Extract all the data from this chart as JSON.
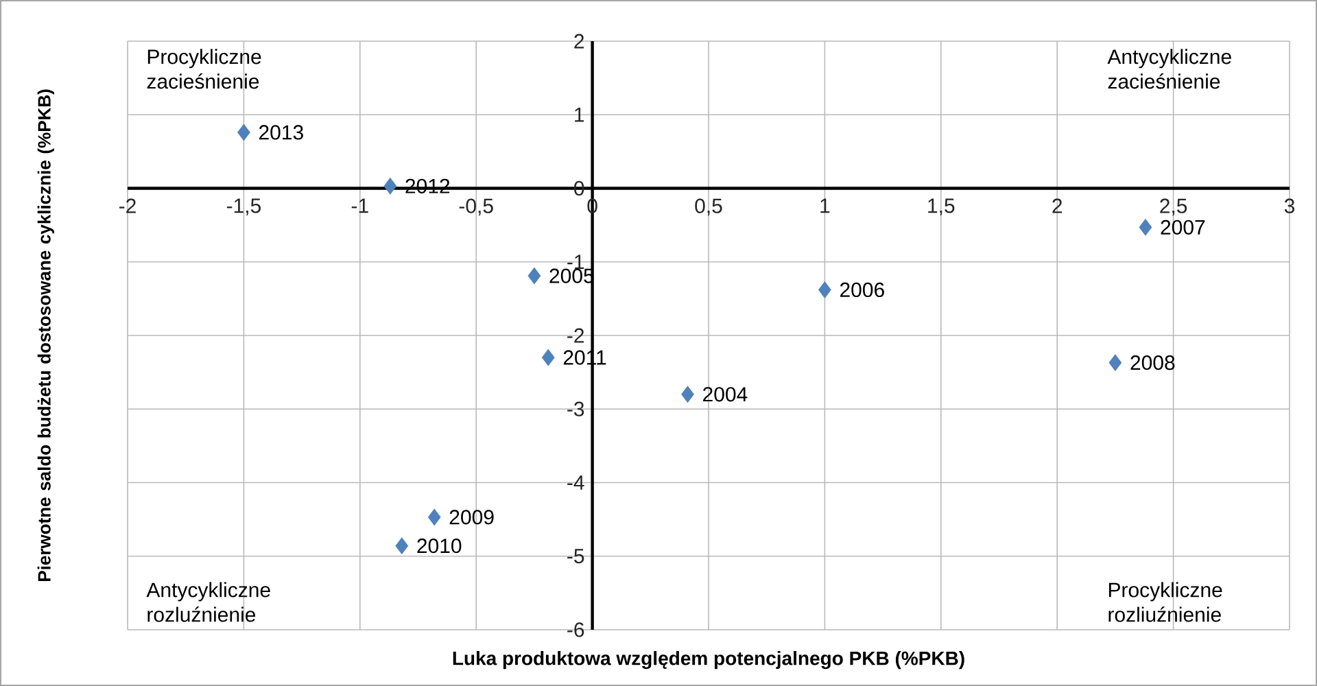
{
  "chart_data": {
    "type": "scatter",
    "xlabel": "Luka produktowa względem potencjalnego PKB (%PKB)",
    "ylabel": "Pierwotne saldo budżetu dostosowane cyklicznie (%PKB)",
    "x": [
      -1.5,
      -0.87,
      -0.25,
      -0.19,
      0.41,
      1.0,
      2.38,
      2.25,
      -0.68,
      -0.82
    ],
    "values": [
      0.76,
      0.03,
      -1.19,
      -2.3,
      -2.8,
      -1.38,
      -0.53,
      -2.37,
      -4.47,
      -4.86
    ],
    "color": "#4f81bd",
    "marker": "diamond",
    "grid": true,
    "xlim": [
      -2,
      3
    ],
    "xticks": [
      -2,
      {
        "value": -1.5,
        "label": "-1,5"
      },
      -1,
      {
        "value": -0.5,
        "label": "-0,5"
      },
      0,
      {
        "value": 0.5,
        "label": "0,5"
      },
      1,
      {
        "value": 1.5,
        "label": "1,5"
      },
      2,
      {
        "value": 2.5,
        "label": "2,5"
      },
      3
    ],
    "ylim": [
      -6,
      2
    ],
    "yticks": [
      -6,
      -5,
      -4,
      -3,
      -2,
      -1,
      0,
      1,
      2
    ],
    "annotations": [
      "Procykliczne zacieśnienie",
      "Antycykliczne zacieśnienie",
      "Antycykliczne rozluźnienie",
      "Procykliczne rozliuźnienie",
      {
        "text": "2013",
        "x": -1.5,
        "y": 0.76
      },
      {
        "text": "2012",
        "x": -0.87,
        "y": 0.03
      },
      {
        "text": "2005",
        "x": -0.25,
        "y": -1.19
      },
      {
        "text": "2011",
        "x": -0.19,
        "y": -2.3
      },
      {
        "text": "2004",
        "x": 0.41,
        "y": -2.8
      },
      {
        "text": "2006",
        "x": 1.0,
        "y": -1.38
      },
      {
        "text": "2007",
        "x": 2.38,
        "y": -0.53
      },
      {
        "text": "2008",
        "x": 2.25,
        "y": -2.37
      },
      {
        "text": "2009",
        "x": -0.68,
        "y": -4.47
      },
      {
        "text": "2010",
        "x": -0.82,
        "y": -4.86
      }
    ]
  }
}
